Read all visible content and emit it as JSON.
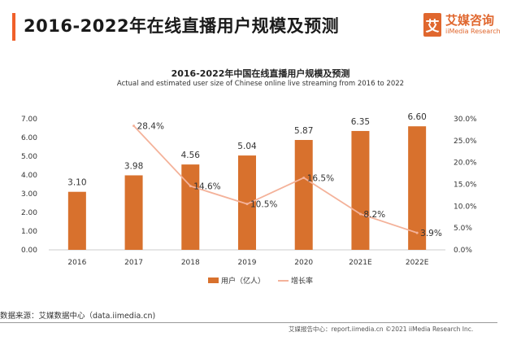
{
  "header": {
    "title": "2016-2022年在线直播用户规模及预测",
    "logo_mark": "艾",
    "logo_cn": "艾媒咨询",
    "logo_en": "iiMedia Research",
    "accent_color": "#f0602a"
  },
  "chart_data": {
    "type": "bar+line",
    "title": "2016-2022年中国在线直播用户规模及预测",
    "subtitle": "Actual and estimated user size of Chinese online live streaming from 2016 to 2022",
    "categories": [
      "2016",
      "2017",
      "2018",
      "2019",
      "2020",
      "2021E",
      "2022E"
    ],
    "series": [
      {
        "name": "用户（亿人）",
        "type": "bar",
        "axis": "left",
        "color": "#d8712d",
        "values": [
          3.1,
          3.98,
          4.56,
          5.04,
          5.87,
          6.35,
          6.6
        ],
        "labels": [
          "3.10",
          "3.98",
          "4.56",
          "5.04",
          "5.87",
          "6.35",
          "6.60"
        ]
      },
      {
        "name": "增长率",
        "type": "line",
        "axis": "right",
        "color": "#f4b29a",
        "values": [
          null,
          28.4,
          14.6,
          10.5,
          16.5,
          8.2,
          3.9
        ],
        "labels": [
          "",
          "28.4%",
          "14.6%",
          "10.5%",
          "16.5%",
          "8.2%",
          "3.9%"
        ]
      }
    ],
    "left_axis": {
      "range": [
        0,
        7
      ],
      "ticks": [
        "0.00",
        "1.00",
        "2.00",
        "3.00",
        "4.00",
        "5.00",
        "6.00",
        "7.00"
      ]
    },
    "right_axis": {
      "range": [
        0,
        30
      ],
      "ticks": [
        "0.0%",
        "5.0%",
        "10.0%",
        "15.0%",
        "20.0%",
        "25.0%",
        "30.0%"
      ]
    },
    "grid": false,
    "legend_position": "bottom"
  },
  "footer": {
    "source": "数据来源：艾媒数据中心（data.iimedia.cn)",
    "report": "艾媒报告中心：report.iimedia.cn   ©2021  iiMedia Research Inc."
  }
}
